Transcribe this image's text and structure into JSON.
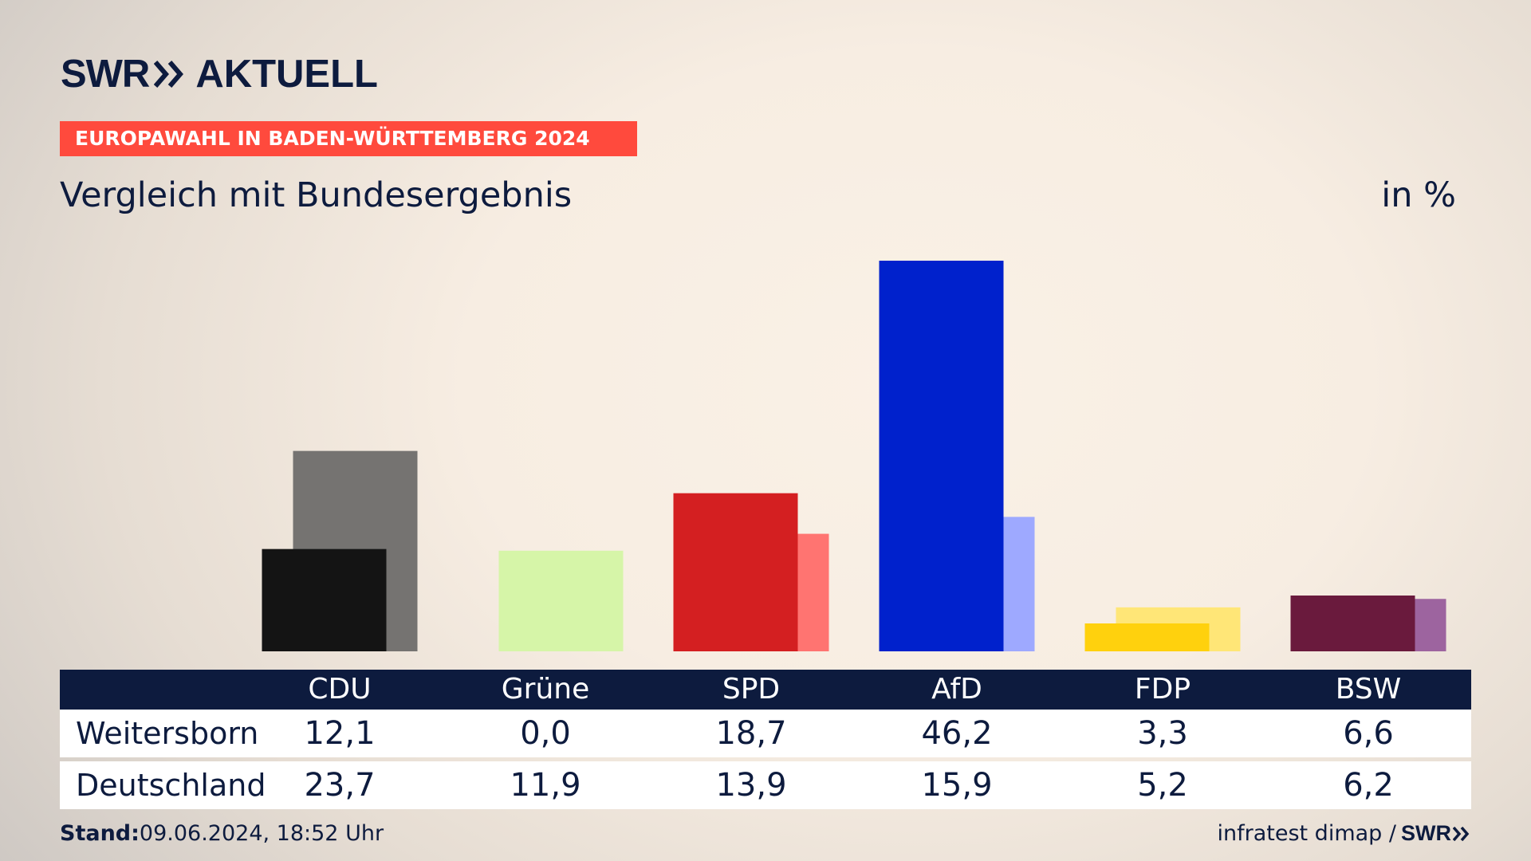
{
  "header": {
    "logo_left": "SWR",
    "logo_right": "AKTUELL",
    "banner": "EUROPAWAHL IN BADEN-WÜRTTEMBERG 2024",
    "subtitle": "Vergleich mit Bundesergebnis",
    "unit": "in %"
  },
  "chart_data": {
    "type": "bar",
    "title": "Vergleich mit Bundesergebnis",
    "categories": [
      "CDU",
      "Grüne",
      "SPD",
      "AfD",
      "FDP",
      "BSW"
    ],
    "series": [
      {
        "name": "Weitersborn",
        "values": [
          12.1,
          0.0,
          18.7,
          46.2,
          3.3,
          6.6
        ],
        "colors": [
          "#141414",
          "#d6f5a8",
          "#d41f21",
          "#0021cc",
          "#ffd10d",
          "#6a1a3d"
        ]
      },
      {
        "name": "Deutschland",
        "values": [
          23.7,
          11.9,
          13.9,
          15.9,
          5.2,
          6.2
        ],
        "colors": [
          "#757371",
          "#d6f5a8",
          "#ff7471",
          "#9ea9ff",
          "#ffe677",
          "#9d649f"
        ]
      }
    ],
    "ylabel": "in %",
    "ylim": [
      0,
      46.2
    ],
    "grid": false
  },
  "table": {
    "rows": [
      {
        "label": "Weitersborn",
        "values": [
          "12,1",
          "0,0",
          "18,7",
          "46,2",
          "3,3",
          "6,6"
        ]
      },
      {
        "label": "Deutschland",
        "values": [
          "23,7",
          "11,9",
          "13,9",
          "15,9",
          "5,2",
          "6,2"
        ]
      }
    ]
  },
  "footer": {
    "stand_label": "Stand:",
    "stand_value": "09.06.2024, 18:52 Uhr",
    "source": "infratest dimap /",
    "logo": "SWR"
  }
}
